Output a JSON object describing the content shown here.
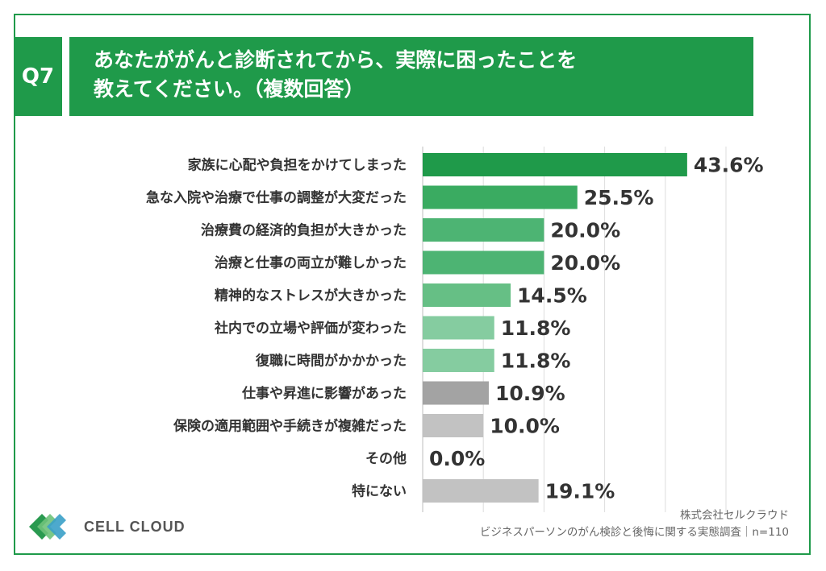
{
  "question": {
    "badge": "Q7",
    "line1": "あなたががんと診断されてから、実際に困ったことを",
    "line2": "教えてください。（複数回答）"
  },
  "brand": {
    "name": "CELL CLOUD",
    "logo_icon": "cell-cloud-logo-icon"
  },
  "source": {
    "company": "株式会社セルクラウド",
    "survey": "ビジネスパーソンのがん検診と後悔に関する実態調査｜n=110"
  },
  "colors": {
    "accent": "#1f9a4a",
    "frame": "#1f9a4a"
  },
  "chart_data": {
    "type": "bar",
    "orientation": "horizontal",
    "unit": "%",
    "xlim": [
      0,
      50
    ],
    "grid": true,
    "categories": [
      "家族に心配や負担をかけてしまった",
      "急な入院や治療で仕事の調整が大変だった",
      "治療費の経済的負担が大きかった",
      "治療と仕事の両立が難しかった",
      "精神的なストレスが大きかった",
      "社内での立場や評価が変わった",
      "復職に時間がかかかった",
      "仕事や昇進に影響があった",
      "保険の適用範囲や手続きが複雑だった",
      "その他",
      "特にない"
    ],
    "values": [
      43.6,
      25.5,
      20.0,
      20.0,
      14.5,
      11.8,
      11.8,
      10.9,
      10.0,
      0.0,
      19.1
    ],
    "value_labels": [
      "43.6%",
      "25.5%",
      "20.0%",
      "20.0%",
      "14.5%",
      "11.8%",
      "11.8%",
      "10.9%",
      "10.0%",
      "0.0%",
      "19.1%"
    ],
    "bar_colors": [
      "#1f9a4a",
      "#3aab61",
      "#4db473",
      "#4db473",
      "#66bf85",
      "#85cca0",
      "#85cca0",
      "#a3a3a3",
      "#c2c2c2",
      "#c2c2c2",
      "#c2c2c2"
    ]
  }
}
